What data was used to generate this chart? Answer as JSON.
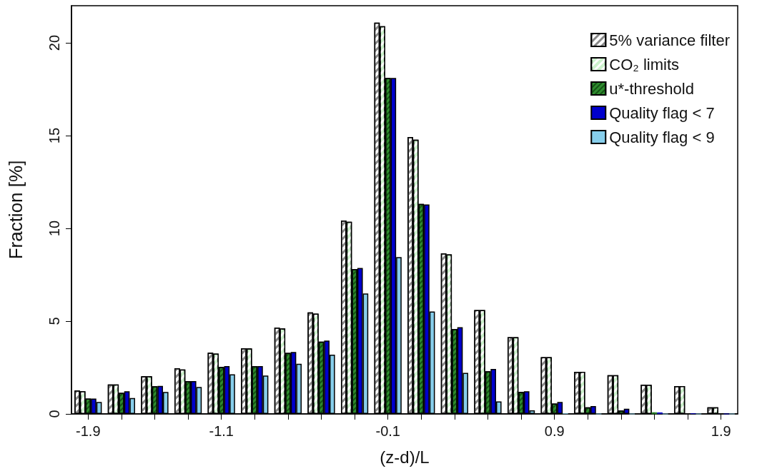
{
  "chart_data": {
    "type": "bar",
    "xlabel": "(z-d)/L",
    "ylabel": "Fraction [%]",
    "categories": [
      "-1.9",
      null,
      null,
      null,
      "-1.1",
      null,
      null,
      null,
      null,
      "-0.1",
      null,
      null,
      null,
      null,
      "0.9",
      null,
      null,
      null,
      null,
      "1.9"
    ],
    "series": [
      {
        "name": "5% variance filter",
        "color": "#ffffff",
        "values": [
          1.26,
          1.59,
          2.03,
          2.46,
          3.3,
          3.54,
          4.65,
          5.47,
          10.42,
          21.09,
          14.92,
          8.65,
          5.6,
          4.13,
          3.06,
          2.27,
          2.09,
          1.58,
          1.5,
          0.36
        ]
      },
      {
        "name": "CO₂ limits",
        "color": "#ccf2cc",
        "values": [
          1.22,
          1.59,
          2.03,
          2.39,
          3.25,
          3.53,
          4.61,
          5.4,
          10.36,
          20.89,
          14.78,
          8.6,
          5.6,
          4.13,
          3.06,
          2.27,
          2.09,
          1.57,
          1.5,
          0.36
        ]
      },
      {
        "name": "u*-threshold",
        "color": "#2e8b2e",
        "values": [
          0.83,
          1.13,
          1.49,
          1.77,
          2.53,
          2.58,
          3.29,
          3.89,
          7.81,
          18.11,
          11.32,
          4.58,
          2.3,
          1.18,
          0.56,
          0.36,
          0.18,
          0.08,
          null,
          null
        ]
      },
      {
        "name": "Quality flag < 7",
        "color": "#0000cc",
        "values": [
          0.83,
          1.22,
          1.51,
          1.77,
          2.58,
          2.58,
          3.34,
          3.95,
          7.87,
          18.11,
          11.29,
          4.67,
          2.42,
          1.22,
          0.64,
          0.42,
          0.28,
          0.08,
          0.03,
          0
        ]
      },
      {
        "name": "Quality flag < 9",
        "color": "#87ceeb",
        "values": [
          0.64,
          0.86,
          1.18,
          1.45,
          2.13,
          2.07,
          2.7,
          3.19,
          6.49,
          8.45,
          5.52,
          2.21,
          0.67,
          0.19,
          0.03,
          0,
          0,
          0,
          0,
          0
        ]
      }
    ],
    "ylim": [
      0,
      22
    ],
    "yticks": [
      0,
      5,
      10,
      15,
      20
    ],
    "grid": false,
    "legend": "top right"
  }
}
